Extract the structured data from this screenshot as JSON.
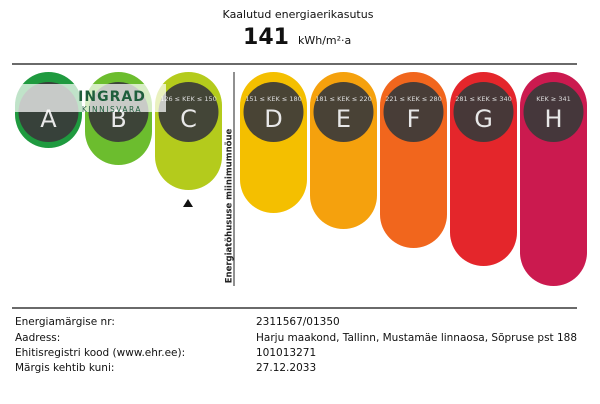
{
  "header": {
    "title": "Kaalutud energiaerikasutus",
    "value": "141",
    "unit": "kWh/m²·a"
  },
  "logo": {
    "name": "INGRAD",
    "subtitle": "KINNISVARA"
  },
  "classes": [
    {
      "letter": "A",
      "color": "#1f9a3f"
    },
    {
      "letter": "B",
      "color": "#6cbd2e"
    },
    {
      "letter": "C",
      "range": "126 ≤ KEK ≤ 150",
      "color": "#b4cb1c"
    },
    {
      "letter": "D",
      "range": "151 ≤ KEK ≤ 180",
      "color": "#f4bf00"
    },
    {
      "letter": "E",
      "range": "181 ≤ KEK ≤ 220",
      "color": "#f5a10d"
    },
    {
      "letter": "F",
      "range": "221 ≤ KEK ≤ 280",
      "color": "#f1661d"
    },
    {
      "letter": "G",
      "range": "281 ≤ KEK ≤ 340",
      "color": "#e4262b"
    },
    {
      "letter": "H",
      "range": "KEK ≥ 341",
      "color": "#cb1a4f"
    }
  ],
  "minimum_label": "Energiatõhususe miinimumnõue",
  "details": [
    {
      "label": "Energiamärgise nr:",
      "value": "2311567/01350"
    },
    {
      "label": "Aadress:",
      "value": "Harju maakond, Tallinn, Mustamäe linnaosa, Sõpruse pst 188"
    },
    {
      "label": "Ehitisregistri kood (www.ehr.ee):",
      "value": "101013271"
    },
    {
      "label": "Märgis kehtib kuni:",
      "value": "27.12.2033"
    }
  ]
}
